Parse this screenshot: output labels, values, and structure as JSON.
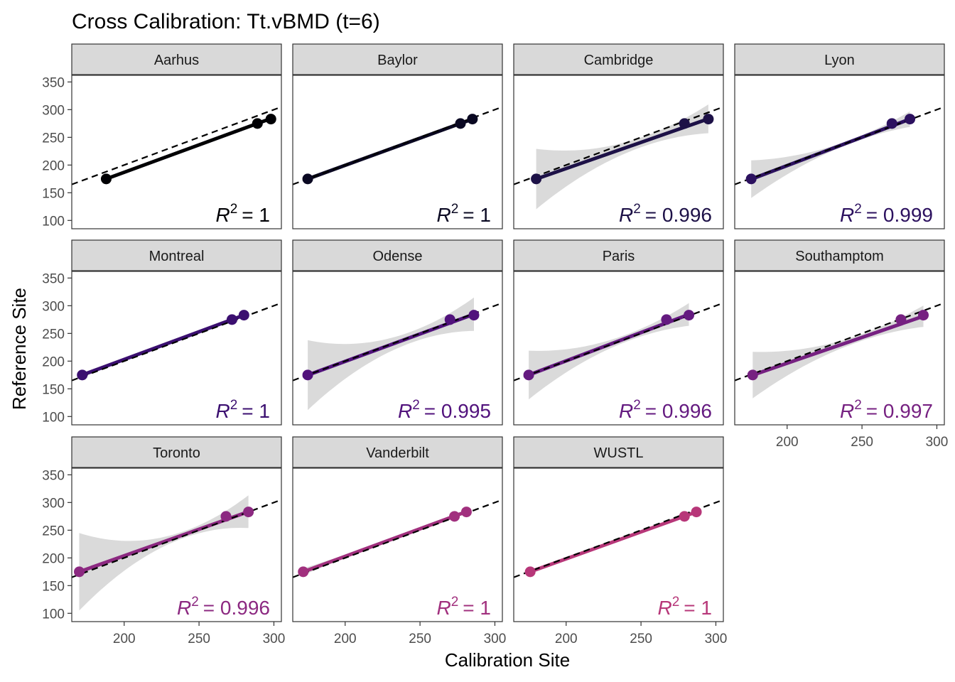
{
  "chart_data": {
    "type": "scatter",
    "title": "Cross Calibration: Tt.vBMD (t=6)",
    "xlabel": "Calibration Site",
    "ylabel": "Reference Site",
    "xlim": [
      165,
      305
    ],
    "ylim": [
      85,
      362
    ],
    "x_ticks": [
      200,
      250,
      300
    ],
    "y_ticks": [
      100,
      150,
      200,
      250,
      300,
      350
    ],
    "identity_line": "dashed black y = x",
    "ribbon_color": "#d3d3d3",
    "facets": [
      {
        "name": "Aarhus",
        "color": "#000004",
        "r2_label": "= 1",
        "points": [
          {
            "x": 188,
            "y": 175
          },
          {
            "x": 289,
            "y": 275
          },
          {
            "x": 298,
            "y": 283
          }
        ],
        "fit": {
          "slope": 0.9901,
          "intercept": -11.1
        },
        "band": null
      },
      {
        "name": "Baylor",
        "color": "#0a0822",
        "r2_label": "= 1",
        "points": [
          {
            "x": 175,
            "y": 175
          },
          {
            "x": 277,
            "y": 275
          },
          {
            "x": 285,
            "y": 283
          }
        ],
        "fit": {
          "slope": 0.982,
          "intercept": 3.1
        },
        "band": null
      },
      {
        "name": "Cambridge",
        "color": "#1d1147",
        "r2_label": "= 0.996",
        "points": [
          {
            "x": 180,
            "y": 175
          },
          {
            "x": 279,
            "y": 275
          },
          {
            "x": 295,
            "y": 283
          }
        ],
        "fit": {
          "slope": 0.9445,
          "intercept": 4.8
        },
        "band": {
          "center": 251.3,
          "min": 8.8,
          "max": 54.5
        }
      },
      {
        "name": "Lyon",
        "color": "#2c115f",
        "r2_label": "= 0.999",
        "points": [
          {
            "x": 176,
            "y": 175
          },
          {
            "x": 270,
            "y": 275
          },
          {
            "x": 282,
            "y": 283
          }
        ],
        "fit": {
          "slope": 1.023,
          "intercept": -5.6
        },
        "band": {
          "center": 242.7,
          "min": 3.3,
          "max": 34.0
        }
      },
      {
        "name": "Montreal",
        "color": "#3b0f70",
        "r2_label": "= 1",
        "points": [
          {
            "x": 172,
            "y": 175
          },
          {
            "x": 272,
            "y": 275
          },
          {
            "x": 280,
            "y": 283
          }
        ],
        "fit": {
          "slope": 1.0,
          "intercept": 3.0
        },
        "band": {
          "center": 241.3,
          "min": 2.0,
          "max": 4.0
        }
      },
      {
        "name": "Odense",
        "color": "#51127c",
        "r2_label": "= 0.995",
        "points": [
          {
            "x": 175,
            "y": 175
          },
          {
            "x": 270,
            "y": 275
          },
          {
            "x": 286,
            "y": 283
          }
        ],
        "fit": {
          "slope": 0.9905,
          "intercept": 1.4
        },
        "band": {
          "center": 243.7,
          "min": 10.0,
          "max": 63.0
        }
      },
      {
        "name": "Paris",
        "color": "#641a80",
        "r2_label": "= 0.996",
        "points": [
          {
            "x": 175,
            "y": 175
          },
          {
            "x": 267,
            "y": 275
          },
          {
            "x": 282,
            "y": 283
          }
        ],
        "fit": {
          "slope": 1.0218,
          "intercept": -3.9
        },
        "band": {
          "center": 241.3,
          "min": 6.3,
          "max": 44.0
        }
      },
      {
        "name": "Southamptom",
        "color": "#762181",
        "r2_label": "= 0.997",
        "points": [
          {
            "x": 177,
            "y": 175
          },
          {
            "x": 276,
            "y": 275
          },
          {
            "x": 291,
            "y": 283
          }
        ],
        "fit": {
          "slope": 0.9322,
          "intercept": 9.8
        },
        "band": {
          "center": 248.0,
          "min": 6.0,
          "max": 42.0
        }
      },
      {
        "name": "Toronto",
        "color": "#8c2981",
        "r2_label": "= 0.996",
        "points": [
          {
            "x": 170,
            "y": 175
          },
          {
            "x": 268,
            "y": 275
          },
          {
            "x": 283,
            "y": 283
          }
        ],
        "fit": {
          "slope": 0.9599,
          "intercept": 11.8
        },
        "band": {
          "center": 240.3,
          "min": 6.0,
          "max": 70.0
        }
      },
      {
        "name": "Vanderbilt",
        "color": "#a1307e",
        "r2_label": "= 1",
        "points": [
          {
            "x": 172,
            "y": 175
          },
          {
            "x": 273,
            "y": 275
          },
          {
            "x": 281,
            "y": 283
          }
        ],
        "fit": {
          "slope": 0.9963,
          "intercept": 3.5
        },
        "band": {
          "center": 242.0,
          "min": 1.5,
          "max": 6.0
        }
      },
      {
        "name": "WUSTL",
        "color": "#b73779",
        "r2_label": "= 1",
        "points": [
          {
            "x": 176,
            "y": 175
          },
          {
            "x": 279,
            "y": 275
          },
          {
            "x": 287,
            "y": 283
          }
        ],
        "fit": {
          "slope": 0.9733,
          "intercept": 3.7
        },
        "band": null
      }
    ]
  }
}
